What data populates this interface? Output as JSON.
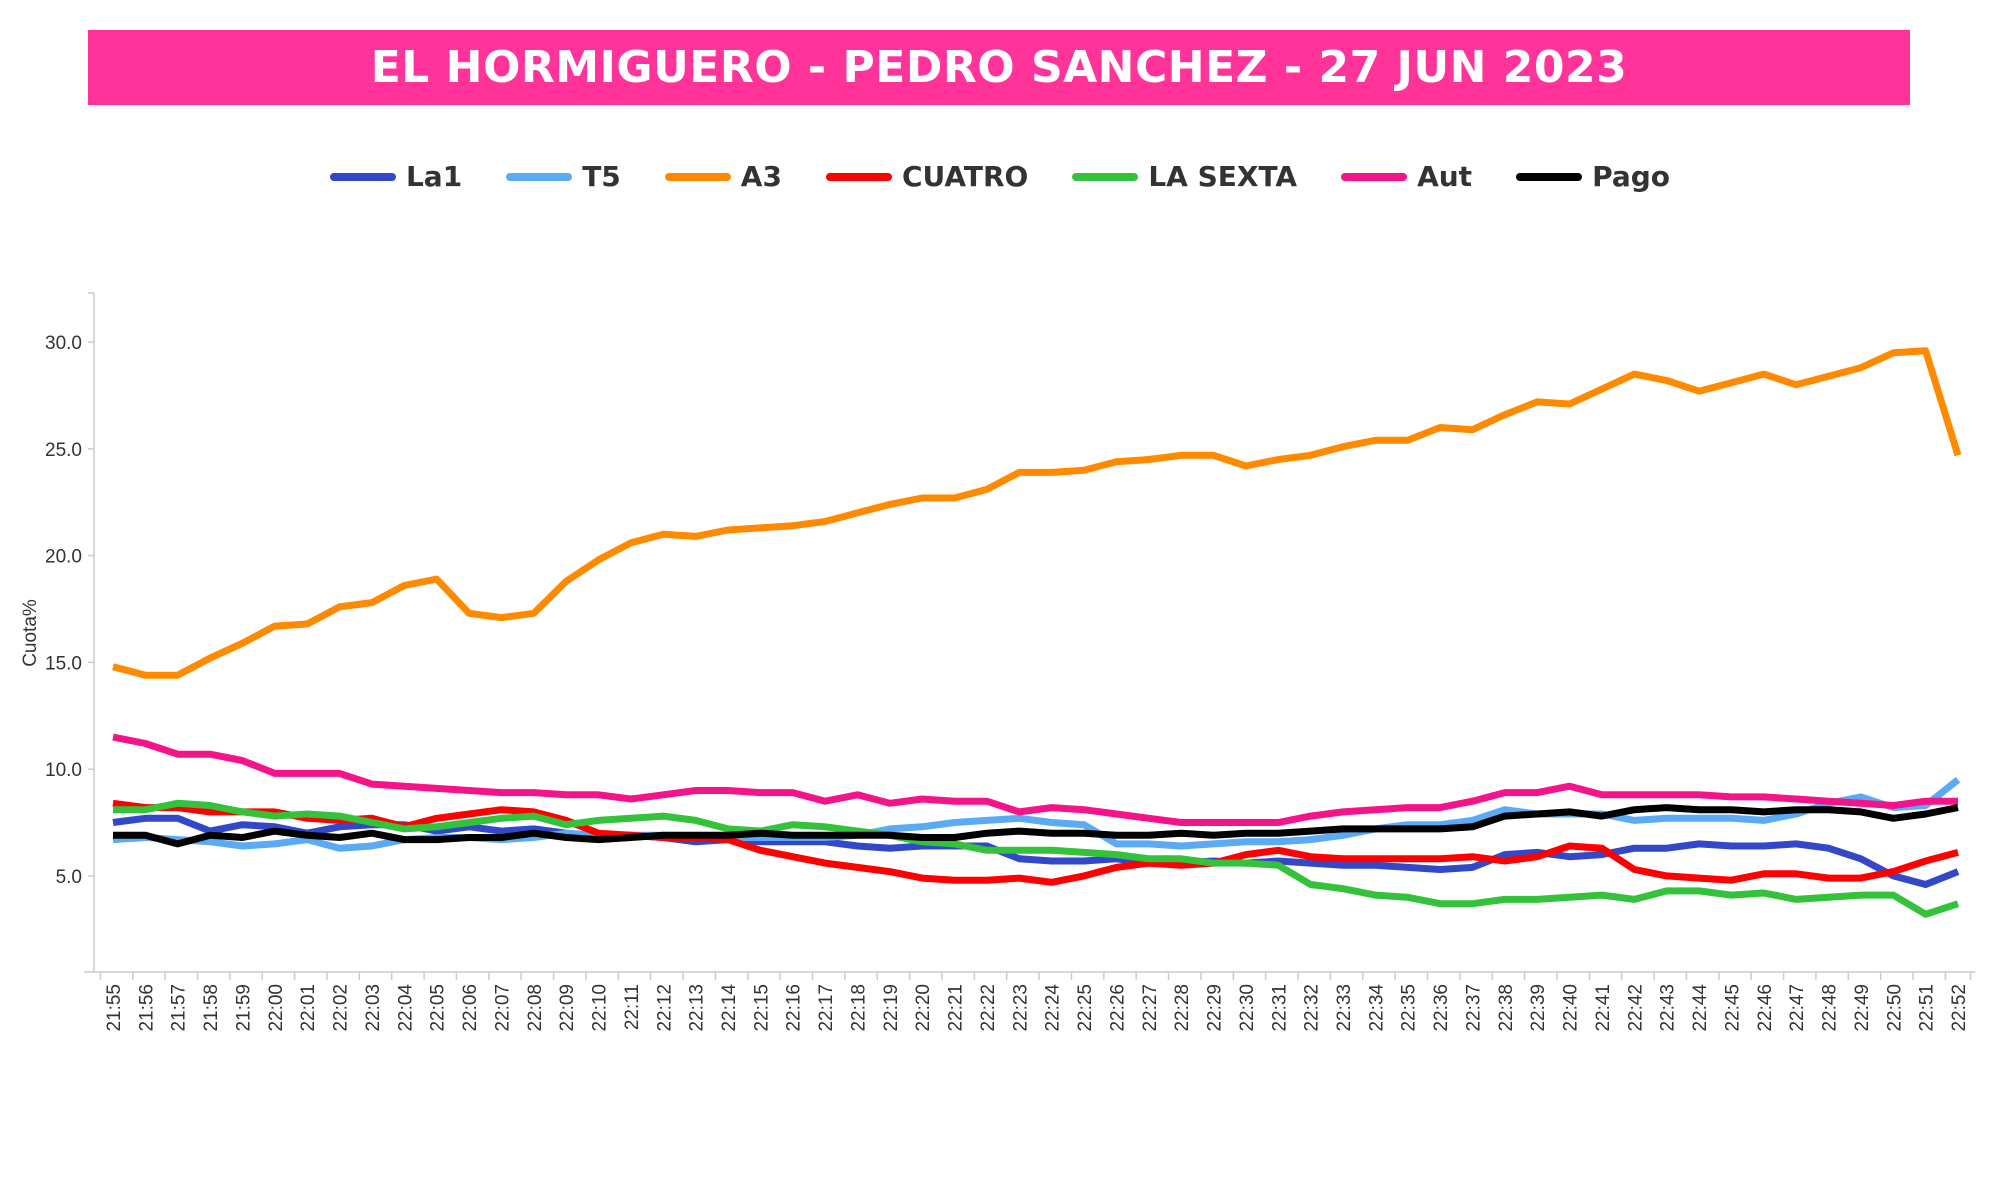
{
  "chart_data": {
    "type": "line",
    "title": "EL HORMIGUERO - PEDRO SANCHEZ - 27 JUN 2023",
    "xlabel": "",
    "ylabel": "Cuota%",
    "ylim": [
      0.5,
      32.3
    ],
    "yticks": [
      5.0,
      10.0,
      15.0,
      20.0,
      25.0,
      30.0
    ],
    "ytick_labels": [
      "5.0",
      "10.0",
      "15.0",
      "20.0",
      "25.0",
      "30.0"
    ],
    "grid": false,
    "legend_position": "top-center",
    "title_color": "#ff3399",
    "x": [
      "21:55",
      "21:56",
      "21:57",
      "21:58",
      "21:59",
      "22:00",
      "22:01",
      "22:02",
      "22:03",
      "22:04",
      "22:05",
      "22:06",
      "22:07",
      "22:08",
      "22:09",
      "22:10",
      "22:11",
      "22:12",
      "22:13",
      "22:14",
      "22:15",
      "22:16",
      "22:17",
      "22:18",
      "22:19",
      "22:20",
      "22:21",
      "22:22",
      "22:23",
      "22:24",
      "22:25",
      "22:26",
      "22:27",
      "22:28",
      "22:29",
      "22:30",
      "22:31",
      "22:32",
      "22:33",
      "22:34",
      "22:35",
      "22:36",
      "22:37",
      "22:38",
      "22:39",
      "22:40",
      "22:41",
      "22:42",
      "22:43",
      "22:44",
      "22:45",
      "22:46",
      "22:47",
      "22:48",
      "22:49",
      "22:50",
      "22:51",
      "22:52"
    ],
    "series": [
      {
        "name": "La1",
        "color": "#3347c9",
        "values": [
          7.5,
          7.7,
          7.7,
          7.1,
          7.4,
          7.3,
          7.0,
          7.3,
          7.4,
          7.4,
          7.1,
          7.3,
          7.1,
          7.2,
          7.0,
          6.8,
          6.9,
          6.8,
          6.6,
          6.7,
          6.6,
          6.6,
          6.6,
          6.4,
          6.3,
          6.4,
          6.4,
          6.4,
          5.8,
          5.7,
          5.7,
          5.8,
          5.6,
          5.6,
          5.7,
          5.6,
          5.7,
          5.6,
          5.5,
          5.5,
          5.4,
          5.3,
          5.4,
          6.0,
          6.1,
          5.9,
          6.0,
          6.3,
          6.3,
          6.5,
          6.4,
          6.4,
          6.5,
          6.3,
          5.8,
          5.0,
          4.6,
          5.2
        ]
      },
      {
        "name": "T5",
        "color": "#5aaaf5",
        "values": [
          6.7,
          6.8,
          6.7,
          6.6,
          6.4,
          6.5,
          6.7,
          6.3,
          6.4,
          6.7,
          6.8,
          6.8,
          6.7,
          6.8,
          7.0,
          6.9,
          6.9,
          6.9,
          6.8,
          6.8,
          6.8,
          6.8,
          6.8,
          6.9,
          7.2,
          7.3,
          7.5,
          7.6,
          7.7,
          7.5,
          7.4,
          6.5,
          6.5,
          6.4,
          6.5,
          6.6,
          6.6,
          6.7,
          6.9,
          7.2,
          7.4,
          7.4,
          7.6,
          8.1,
          7.9,
          7.9,
          7.9,
          7.6,
          7.7,
          7.7,
          7.7,
          7.6,
          7.9,
          8.4,
          8.7,
          8.2,
          8.3,
          9.5
        ]
      },
      {
        "name": "A3",
        "color": "#ff8a00",
        "values": [
          14.8,
          14.4,
          14.4,
          15.2,
          15.9,
          16.7,
          16.8,
          17.6,
          17.8,
          18.6,
          18.9,
          17.3,
          17.1,
          17.3,
          18.8,
          19.8,
          20.6,
          21.0,
          20.9,
          21.2,
          21.3,
          21.4,
          21.6,
          22.0,
          22.4,
          22.7,
          22.7,
          23.1,
          23.9,
          23.9,
          24.0,
          24.4,
          24.5,
          24.7,
          24.7,
          24.2,
          24.5,
          24.7,
          25.1,
          25.4,
          25.4,
          26.0,
          25.9,
          26.6,
          27.2,
          27.1,
          27.8,
          28.5,
          28.2,
          27.7,
          28.1,
          28.5,
          28.0,
          28.4,
          28.8,
          29.5,
          29.6,
          24.7
        ]
      },
      {
        "name": "CUATRO",
        "color": "#ff0000",
        "values": [
          8.4,
          8.2,
          8.2,
          8.0,
          8.0,
          8.0,
          7.7,
          7.6,
          7.7,
          7.3,
          7.7,
          7.9,
          8.1,
          8.0,
          7.6,
          7.0,
          6.9,
          6.8,
          6.8,
          6.7,
          6.2,
          5.9,
          5.6,
          5.4,
          5.2,
          4.9,
          4.8,
          4.8,
          4.9,
          4.7,
          5.0,
          5.4,
          5.6,
          5.5,
          5.6,
          6.0,
          6.2,
          5.9,
          5.8,
          5.8,
          5.8,
          5.8,
          5.9,
          5.7,
          5.9,
          6.4,
          6.3,
          5.3,
          5.0,
          4.9,
          4.8,
          5.1,
          5.1,
          4.9,
          4.9,
          5.2,
          5.7,
          6.1
        ]
      },
      {
        "name": "LA SEXTA",
        "color": "#33c23a",
        "values": [
          8.1,
          8.1,
          8.4,
          8.3,
          8.0,
          7.8,
          7.9,
          7.8,
          7.5,
          7.2,
          7.3,
          7.5,
          7.7,
          7.8,
          7.4,
          7.6,
          7.7,
          7.8,
          7.6,
          7.2,
          7.1,
          7.4,
          7.3,
          7.1,
          6.9,
          6.6,
          6.5,
          6.2,
          6.2,
          6.2,
          6.1,
          6.0,
          5.8,
          5.8,
          5.6,
          5.6,
          5.5,
          4.6,
          4.4,
          4.1,
          4.0,
          3.7,
          3.7,
          3.9,
          3.9,
          4.0,
          4.1,
          3.9,
          4.3,
          4.3,
          4.1,
          4.2,
          3.9,
          4.0,
          4.1,
          4.1,
          3.2,
          3.7
        ]
      },
      {
        "name": "Aut",
        "color": "#f5138a",
        "values": [
          11.5,
          11.2,
          10.7,
          10.7,
          10.4,
          9.8,
          9.8,
          9.8,
          9.3,
          9.2,
          9.1,
          9.0,
          8.9,
          8.9,
          8.8,
          8.8,
          8.6,
          8.8,
          9.0,
          9.0,
          8.9,
          8.9,
          8.5,
          8.8,
          8.4,
          8.6,
          8.5,
          8.5,
          8.0,
          8.2,
          8.1,
          7.9,
          7.7,
          7.5,
          7.5,
          7.5,
          7.5,
          7.8,
          8.0,
          8.1,
          8.2,
          8.2,
          8.5,
          8.9,
          8.9,
          9.2,
          8.8,
          8.8,
          8.8,
          8.8,
          8.7,
          8.7,
          8.6,
          8.5,
          8.4,
          8.3,
          8.5,
          8.5
        ]
      },
      {
        "name": "Pago",
        "color": "#000000",
        "values": [
          6.9,
          6.9,
          6.5,
          6.9,
          6.8,
          7.1,
          6.9,
          6.8,
          7.0,
          6.7,
          6.7,
          6.8,
          6.8,
          7.0,
          6.8,
          6.7,
          6.8,
          6.9,
          6.9,
          6.9,
          7.0,
          6.9,
          6.9,
          6.9,
          6.9,
          6.8,
          6.8,
          7.0,
          7.1,
          7.0,
          7.0,
          6.9,
          6.9,
          7.0,
          6.9,
          7.0,
          7.0,
          7.1,
          7.2,
          7.2,
          7.2,
          7.2,
          7.3,
          7.8,
          7.9,
          8.0,
          7.8,
          8.1,
          8.2,
          8.1,
          8.1,
          8.0,
          8.1,
          8.1,
          8.0,
          7.7,
          7.9,
          8.2
        ]
      }
    ]
  }
}
